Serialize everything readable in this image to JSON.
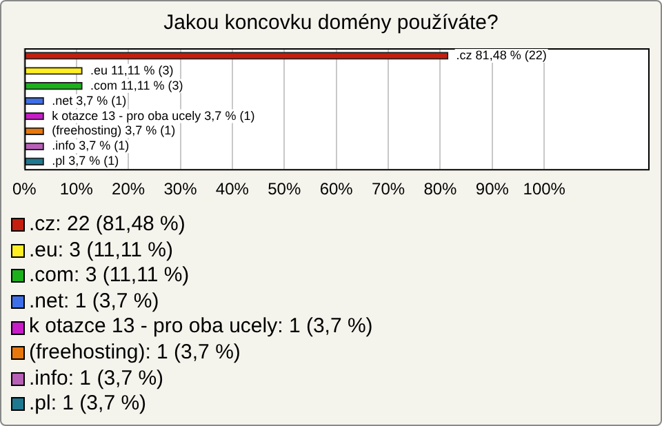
{
  "chart_data": {
    "type": "bar",
    "orientation": "horizontal",
    "title": "Jakou koncovku domény používáte?",
    "categories": [
      null,
      null,
      null,
      null,
      null,
      null,
      null,
      null
    ],
    "values": [
      81.48,
      11.11,
      11.11,
      3.7,
      3.7,
      3.7,
      3.7,
      3.7
    ],
    "colors": [
      "#c41e0e",
      "#ffee22",
      "#1cb01c",
      "#3f6fe8",
      "#c81cc8",
      "#e8780c",
      "#b860b8",
      "#1e7890"
    ],
    "value_labels": [
      ".cz 81,48 % (22)",
      ".eu 11,11 % (3)",
      ".com 11,11 % (3)",
      ".net 3,7 % (1)",
      "k otazce 13 - pro oba ucely 3,7 % (1)",
      "(freehosting) 3,7 % (1)",
      ".info 3,7 % (1)",
      ".pl 3,7 % (1)"
    ],
    "xlim": [
      0,
      120
    ],
    "xticks": [
      {
        "value": 0,
        "label": "0%"
      },
      {
        "value": 10,
        "label": "10%"
      },
      {
        "value": 20,
        "label": "20%"
      },
      {
        "value": 30,
        "label": "30%"
      },
      {
        "value": 40,
        "label": "40%"
      },
      {
        "value": 50,
        "label": "50%"
      },
      {
        "value": 60,
        "label": "60%"
      },
      {
        "value": 70,
        "label": "70%"
      },
      {
        "value": 80,
        "label": "80%"
      },
      {
        "value": 90,
        "label": "90%"
      },
      {
        "value": 100,
        "label": "100%"
      }
    ],
    "grid": "x",
    "tick_labels": "x",
    "annotations": [
      ".cz: 22 (81,48 %)",
      ".eu: 3 (11,11 %)",
      ".com: 3 (11,11 %)",
      ".net: 1 (3,7 %)",
      "k otazce 13 - pro oba ucely: 1 (3,7 %)",
      "(freehosting): 1 (3,7 %)",
      ".info: 1 (3,7 %)",
      ".pl: 1 (3,7 %)"
    ]
  }
}
